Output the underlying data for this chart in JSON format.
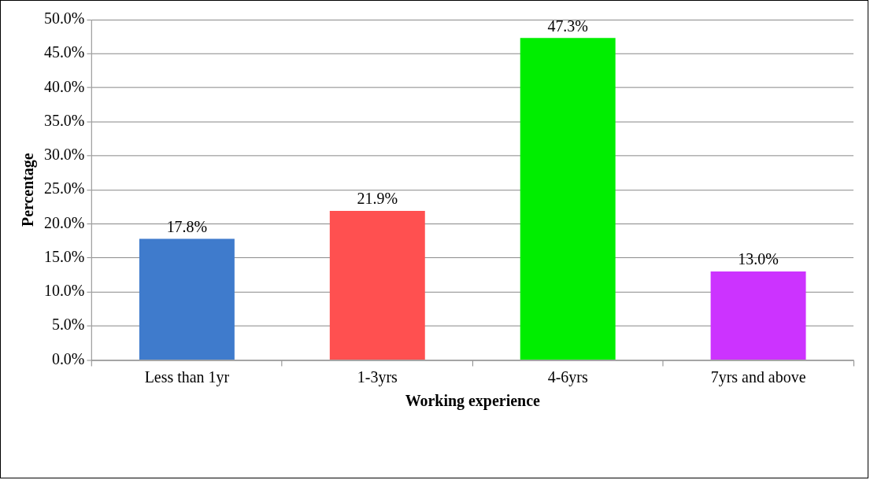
{
  "chart_data": {
    "type": "bar",
    "xlabel": "Working experience",
    "ylabel": "Percentage",
    "categories": [
      "Less than 1yr",
      "1-3yrs",
      "4-6yrs",
      "7yrs and above"
    ],
    "values": [
      17.8,
      21.9,
      47.3,
      13.0
    ],
    "colors": [
      "#3f7bcc",
      "#ff5050",
      "#00ee00",
      "#cc33ff"
    ],
    "value_labels": [
      "17.8%",
      "21.9%",
      "47.3%",
      "13.0%"
    ],
    "ylim": [
      0,
      50
    ],
    "yticks": [
      {
        "value": 0,
        "label": "0.0%"
      },
      {
        "value": 5,
        "label": "5.0%"
      },
      {
        "value": 10,
        "label": "10.0%"
      },
      {
        "value": 15,
        "label": "15.0%"
      },
      {
        "value": 20,
        "label": "20.0%"
      },
      {
        "value": 25,
        "label": "25.0%"
      },
      {
        "value": 30,
        "label": "30.0%"
      },
      {
        "value": 35,
        "label": "35.0%"
      },
      {
        "value": 40,
        "label": "40.0%"
      },
      {
        "value": 45,
        "label": "45.0%"
      },
      {
        "value": 50,
        "label": "50.0%"
      }
    ],
    "grid": "y"
  }
}
